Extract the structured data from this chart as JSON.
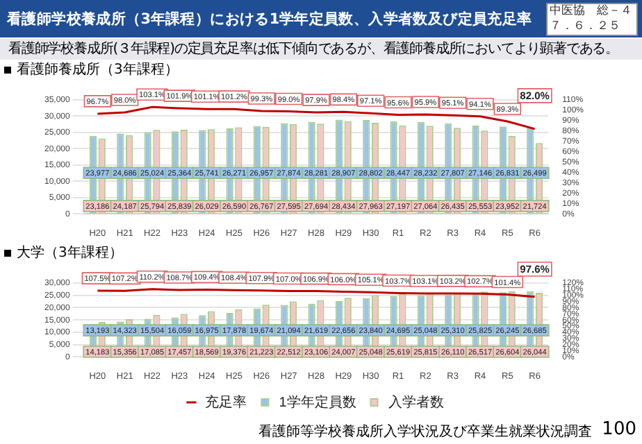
{
  "chart_data": [
    {
      "type": "other",
      "title": "看護師学校養成所（3年課程）における1学年定員数、入学者数及び定員充足率",
      "subtitle": "看護師学校養成所(３年課程)の定員充足率は低下傾向であるが、看護師養成所においてより顕著である。",
      "annotations": [
        "中医協　総－４",
        "７．６．２５"
      ]
    },
    {
      "type": "bar",
      "title": "看護師養成所（3年課程）",
      "categories": [
        "H20",
        "H21",
        "H22",
        "H23",
        "H24",
        "H25",
        "H26",
        "H27",
        "H28",
        "H29",
        "H30",
        "R1",
        "R2",
        "R3",
        "R4",
        "R5",
        "R6"
      ],
      "series": [
        {
          "color": "#9dc3e6",
          "values": [
            23977,
            24686,
            25024,
            25364,
            25741,
            26271,
            26957,
            27874,
            28281,
            28907,
            28802,
            28447,
            28232,
            27807,
            27146,
            26831,
            26499
          ],
          "value_labels": [
            "23,977",
            "24,686",
            "25,024",
            "25,364",
            "25,741",
            "26,271",
            "26,957",
            "27,874",
            "28,281",
            "28,907",
            "28,802",
            "28,447",
            "28,232",
            "27,807",
            "27,146",
            "26,831",
            "26,499"
          ]
        },
        {
          "color": "#f7c5c5",
          "values": [
            23186,
            24187,
            25794,
            25839,
            26029,
            26590,
            26767,
            27595,
            27694,
            28434,
            27963,
            27197,
            27064,
            26435,
            25553,
            23952,
            21724
          ],
          "value_labels": [
            "23,186",
            "24,187",
            "25,794",
            "25,839",
            "26,029",
            "26,590",
            "26,767",
            "27,595",
            "27,694",
            "28,434",
            "27,963",
            "27,197",
            "27,064",
            "26,435",
            "25,553",
            "23,952",
            "21,724"
          ]
        },
        {
          "type": "line",
          "axis": "y2",
          "color": "#c00000",
          "values": [
            96.7,
            98.0,
            103.1,
            101.9,
            101.1,
            101.2,
            99.3,
            99.0,
            97.9,
            98.4,
            97.1,
            95.6,
            95.9,
            95.1,
            94.1,
            89.3,
            82.0
          ],
          "value_labels": [
            "96.7%",
            "98.0%",
            "103.1%",
            "101.9%",
            "101.1%",
            "101.2%",
            "99.3%",
            "99.0%",
            "97.9%",
            "98.4%",
            "97.1%",
            "95.6%",
            "95.9%",
            "95.1%",
            "94.1%",
            "89.3%",
            "82.0%"
          ]
        }
      ],
      "ylim": [
        0,
        35000
      ],
      "yticks": [
        0,
        {
          "value": 5000,
          "label": "5,000"
        },
        {
          "value": 10000,
          "label": "10,000"
        },
        {
          "value": 15000,
          "label": "15,000"
        },
        {
          "value": 20000,
          "label": "20,000"
        },
        {
          "value": 25000,
          "label": "25,000"
        },
        {
          "value": 30000,
          "label": "30,000"
        },
        {
          "value": 35000,
          "label": "35,000"
        }
      ],
      "y2lim": [
        0,
        110
      ],
      "y2ticks": [
        {
          "value": 0,
          "label": "0%"
        },
        {
          "value": 10,
          "label": "10%"
        },
        {
          "value": 20,
          "label": "20%"
        },
        {
          "value": 30,
          "label": "30%"
        },
        {
          "value": 40,
          "label": "40%"
        },
        {
          "value": 50,
          "label": "50%"
        },
        {
          "value": 60,
          "label": "60%"
        },
        {
          "value": 70,
          "label": "70%"
        },
        {
          "value": 80,
          "label": "80%"
        },
        {
          "value": 90,
          "label": "90%"
        },
        {
          "value": 100,
          "label": "100%"
        },
        {
          "value": 110,
          "label": "110%"
        }
      ],
      "grid": "y",
      "marker": "none",
      "line_style": "solid"
    },
    {
      "type": "bar",
      "title": "大学（3年課程）",
      "categories": [
        "H20",
        "H21",
        "H22",
        "H23",
        "H24",
        "H25",
        "H26",
        "H27",
        "H28",
        "H29",
        "H30",
        "R1",
        "R2",
        "R3",
        "R4",
        "R5",
        "R6"
      ],
      "series": [
        {
          "name": "1学年定員数",
          "color": "#9dc3e6",
          "values": [
            13193,
            14323,
            15504,
            16059,
            16975,
            17878,
            19674,
            21094,
            21619,
            22656,
            23840,
            24695,
            25048,
            25310,
            25825,
            26245,
            26685
          ],
          "value_labels": [
            "13,193",
            "14,323",
            "15,504",
            "16,059",
            "16,975",
            "17,878",
            "19,674",
            "21,094",
            "21,619",
            "22,656",
            "23,840",
            "24,695",
            "25,048",
            "25,310",
            "25,825",
            "26,245",
            "26,685"
          ]
        },
        {
          "name": "入学者数",
          "color": "#f7c5c5",
          "values": [
            14183,
            15356,
            17085,
            17457,
            18569,
            19376,
            21223,
            22512,
            23106,
            24007,
            25048,
            25619,
            25815,
            26110,
            26517,
            26604,
            26044
          ],
          "value_labels": [
            "14,183",
            "15,356",
            "17,085",
            "17,457",
            "18,569",
            "19,376",
            "21,223",
            "22,512",
            "23,106",
            "24,007",
            "25,048",
            "25,619",
            "25,815",
            "26,110",
            "26,517",
            "26,604",
            "26,044"
          ]
        },
        {
          "name": "充足率",
          "type": "line",
          "axis": "y2",
          "color": "#c00000",
          "values": [
            107.5,
            107.2,
            110.2,
            108.7,
            109.4,
            108.4,
            107.9,
            107.0,
            106.9,
            106.0,
            105.1,
            103.7,
            103.1,
            103.2,
            102.7,
            101.4,
            97.6
          ],
          "value_labels": [
            "107.5%",
            "107.2%",
            "110.2%",
            "108.7%",
            "109.4%",
            "108.4%",
            "107.9%",
            "107.0%",
            "106.9%",
            "106.0%",
            "105.1%",
            "103.7%",
            "103.1%",
            "103.2%",
            "102.7%",
            "101.4%",
            "97.6%"
          ]
        }
      ],
      "ylim": [
        0,
        30000
      ],
      "yticks": [
        0,
        {
          "value": 5000,
          "label": "5,000"
        },
        {
          "value": 10000,
          "label": "10,000"
        },
        {
          "value": 15000,
          "label": "15,000"
        },
        {
          "value": 20000,
          "label": "20,000"
        },
        {
          "value": 25000,
          "label": "25,000"
        },
        {
          "value": 30000,
          "label": "30,000"
        }
      ],
      "y2lim": [
        0,
        120
      ],
      "y2ticks": [
        {
          "value": 0,
          "label": "0%"
        },
        {
          "value": 10,
          "label": "10%"
        },
        {
          "value": 20,
          "label": "20%"
        },
        {
          "value": 30,
          "label": "30%"
        },
        {
          "value": 40,
          "label": "40%"
        },
        {
          "value": 50,
          "label": "50%"
        },
        {
          "value": 60,
          "label": "60%"
        },
        {
          "value": 70,
          "label": "70%"
        },
        {
          "value": 80,
          "label": "80%"
        },
        {
          "value": 90,
          "label": "90%"
        },
        {
          "value": 100,
          "label": "100%"
        },
        {
          "value": 110,
          "label": "110%"
        },
        {
          "value": 120,
          "label": "120%"
        }
      ],
      "grid": "y",
      "marker": "none",
      "line_style": "solid",
      "legend": "bottom",
      "annotations": [
        "看護師等学校養成所入学状況及び卒業生就業状況調査",
        "100"
      ]
    }
  ]
}
